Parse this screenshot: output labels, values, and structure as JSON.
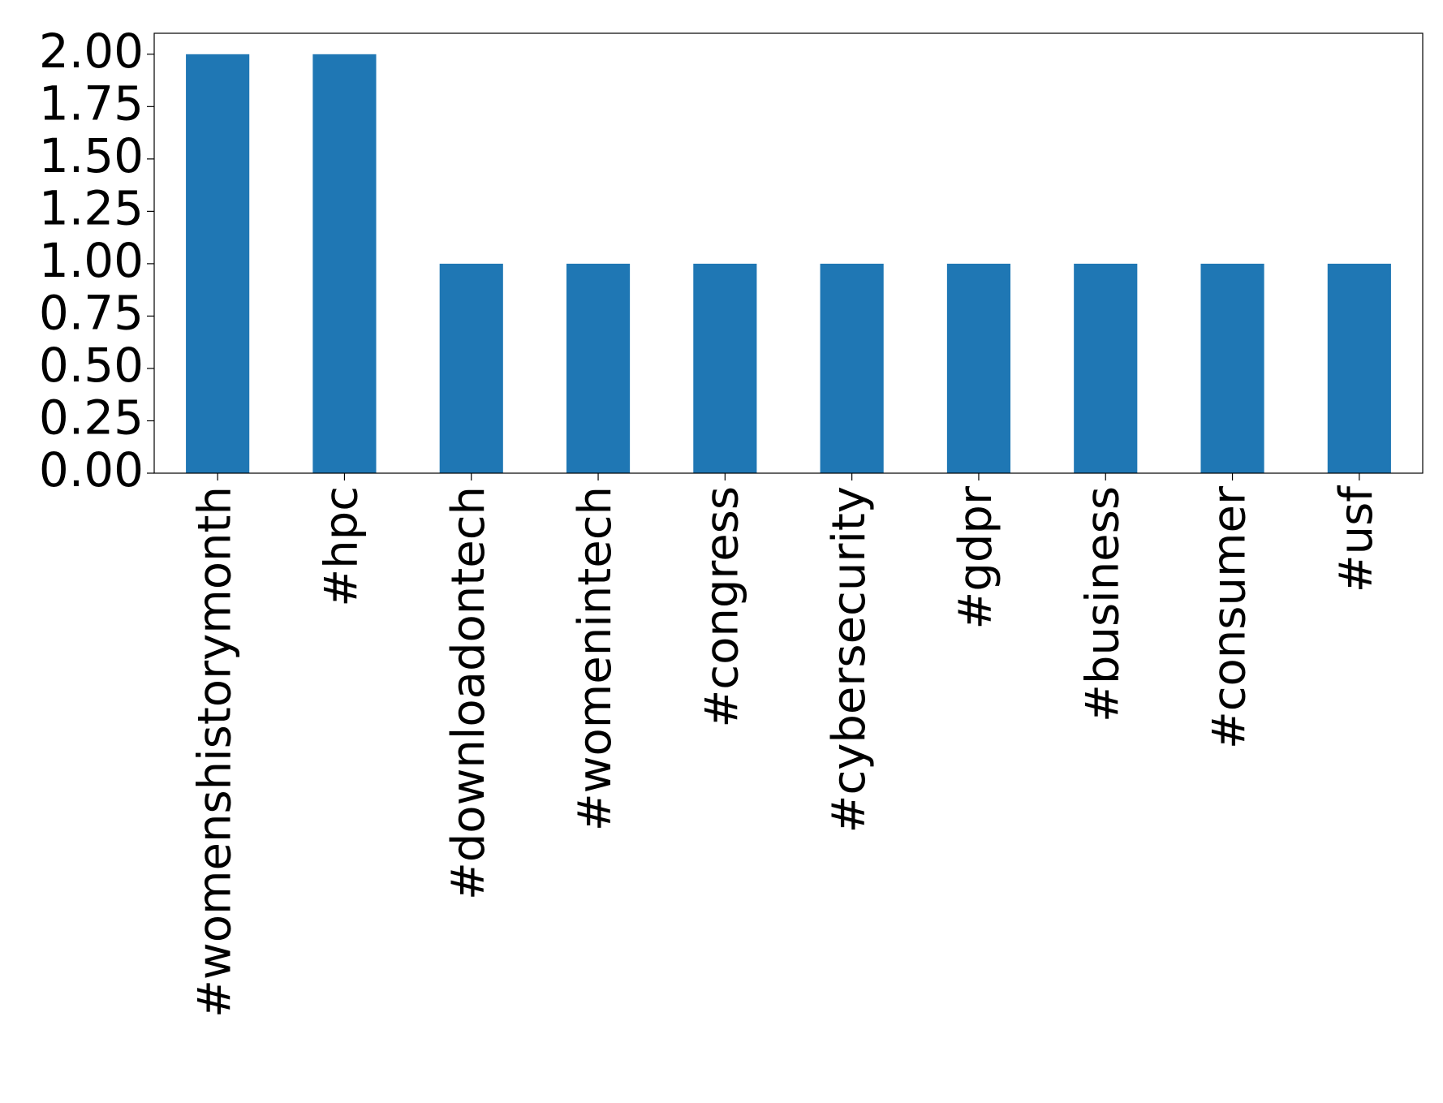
{
  "chart_data": {
    "type": "bar",
    "categories": [
      "#womenshistorymonth",
      "#hpc",
      "#downloadontech",
      "#womenintech",
      "#congress",
      "#cybersecurity",
      "#gdpr",
      "#business",
      "#consumer",
      "#usf"
    ],
    "values": [
      2,
      2,
      1,
      1,
      1,
      1,
      1,
      1,
      1,
      1
    ],
    "color": "#1f77b4",
    "ylim": [
      0,
      2.1
    ],
    "yticks": [
      {
        "value": 0,
        "label": "0.00"
      },
      {
        "value": 0.25,
        "label": "0.25"
      },
      {
        "value": 0.5,
        "label": "0.50"
      },
      {
        "value": 0.75,
        "label": "0.75"
      },
      {
        "value": 1,
        "label": "1.00"
      },
      {
        "value": 1.25,
        "label": "1.25"
      },
      {
        "value": 1.5,
        "label": "1.50"
      },
      {
        "value": 1.75,
        "label": "1.75"
      },
      {
        "value": 2,
        "label": "2.00"
      }
    ],
    "grid": false
  }
}
